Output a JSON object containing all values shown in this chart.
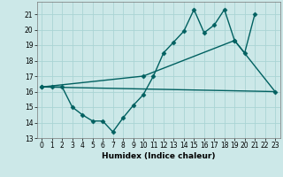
{
  "xlabel": "Humidex (Indice chaleur)",
  "xlim": [
    -0.5,
    23.5
  ],
  "ylim": [
    13,
    21.8
  ],
  "yticks": [
    13,
    14,
    15,
    16,
    17,
    18,
    19,
    20,
    21
  ],
  "xticks": [
    0,
    1,
    2,
    3,
    4,
    5,
    6,
    7,
    8,
    9,
    10,
    11,
    12,
    13,
    14,
    15,
    16,
    17,
    18,
    19,
    20,
    21,
    22,
    23
  ],
  "bg_color": "#cce8e8",
  "grid_color": "#aad4d4",
  "line_color": "#006060",
  "series": [
    {
      "x": [
        0,
        1,
        2,
        3,
        4,
        5,
        6,
        7,
        8,
        9,
        10,
        11,
        12,
        13,
        14,
        15,
        16,
        17,
        18,
        19,
        20,
        21
      ],
      "y": [
        16.3,
        16.3,
        16.3,
        15.0,
        14.5,
        14.1,
        14.1,
        13.4,
        14.3,
        15.1,
        15.8,
        17.0,
        18.5,
        19.2,
        19.9,
        21.3,
        19.8,
        20.3,
        21.3,
        19.3,
        18.5,
        21.0
      ],
      "marker": true,
      "lw": 1.0
    },
    {
      "x": [
        0,
        10,
        19,
        23
      ],
      "y": [
        16.3,
        17.0,
        19.3,
        16.0
      ],
      "marker": true,
      "lw": 1.0
    },
    {
      "x": [
        0,
        23
      ],
      "y": [
        16.3,
        16.0
      ],
      "marker": false,
      "lw": 1.0
    }
  ]
}
